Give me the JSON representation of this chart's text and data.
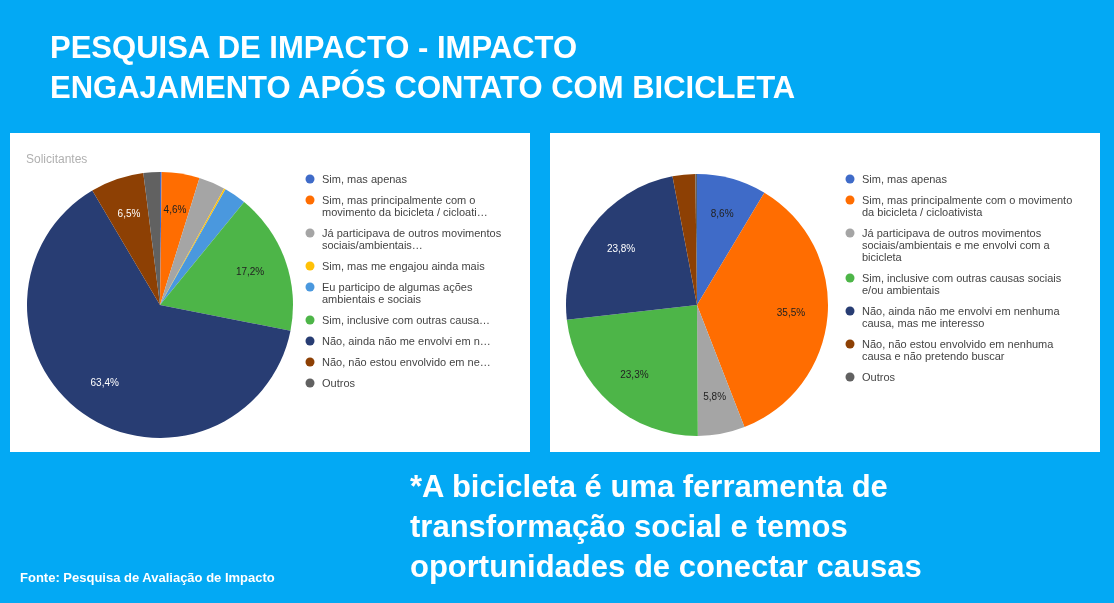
{
  "chart_data": [
    {
      "type": "other",
      "title": "PESQUISA DE IMPACTO - IMPACTO\nENGAJAMENTO APÓS CONTATO COM BICICLETA",
      "annotations": [
        "*A bicicleta é uma ferramenta de transformação social e temos oportunidades de conectar causas",
        "Fonte: Pesquisa de Avaliação de Impacto"
      ]
    },
    {
      "type": "pie",
      "title": "Solicitantes",
      "legend": "right",
      "categories": [
        "Sim, mas apenas",
        "Sim, mas principalmente com o movimento da bicicleta / cicloati…",
        "Já participava de outros movimentos sociais/ambientais…",
        "Sim, mas me engajou ainda mais",
        "Eu participo de algumas ações ambientais e sociais",
        "Sim, inclusive com outras causa…",
        "Não, ainda não me envolvi em n…",
        "Não, não estou envolvido em ne…",
        "Outros"
      ],
      "values": [
        0.2,
        4.6,
        3.2,
        0.2,
        2.7,
        17.2,
        63.4,
        6.5,
        2.0
      ],
      "value_labels": [
        null,
        "4,6%",
        null,
        null,
        null,
        "17,2%",
        "63,4%",
        "6,5%",
        null
      ],
      "colors": [
        "#3f6bc8",
        "#ff6d01",
        "#a5a5a5",
        "#ffc107",
        "#4a98de",
        "#4db548",
        "#283d73",
        "#8d4004",
        "#616161"
      ]
    },
    {
      "type": "pie",
      "legend": "right",
      "categories": [
        "Sim, mas apenas",
        "Sim, mas principalmente com o movimento da bicicleta / cicloativista",
        "Já participava de outros movimentos sociais/ambientais e me envolvi com a bicicleta",
        "Sim, inclusive com outras causas sociais e/ou ambientais",
        "Não, ainda não me envolvi em nenhuma causa, mas me interesso",
        "Não, não estou envolvido em nenhuma causa e não pretendo buscar",
        "Outros"
      ],
      "values": [
        8.6,
        35.5,
        5.8,
        23.3,
        23.8,
        2.8,
        0.2
      ],
      "value_labels": [
        "8,6%",
        "35,5%",
        "5,8%",
        "23,3%",
        "23,8%",
        null,
        null
      ],
      "colors": [
        "#3f6bc8",
        "#ff6d01",
        "#a5a5a5",
        "#4db548",
        "#283d73",
        "#8d4004",
        "#616161"
      ]
    }
  ]
}
